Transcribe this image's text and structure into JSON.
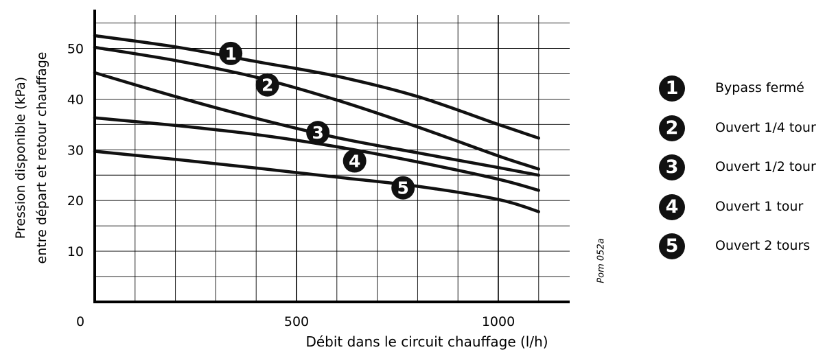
{
  "chart_data": {
    "type": "line",
    "xlabel": "Débit dans le circuit chauffage (l/h)",
    "ylabel_lines": [
      "Pression disponible (kPa)",
      "entre départ et retour chauffage"
    ],
    "xlim": [
      0,
      1200
    ],
    "ylim": [
      0,
      58
    ],
    "x_ticks": [
      {
        "value": 0,
        "label": "0"
      },
      {
        "value": 500,
        "label": "500"
      },
      {
        "value": 1000,
        "label": "1000"
      }
    ],
    "y_ticks": [
      {
        "value": 10,
        "label": "10"
      },
      {
        "value": 20,
        "label": "20"
      },
      {
        "value": 30,
        "label": "30"
      },
      {
        "value": 40,
        "label": "40"
      },
      {
        "value": 50,
        "label": "50"
      }
    ],
    "grid": true,
    "series": [
      {
        "marker": "1",
        "name": "Bypass fermé",
        "x": [
          0,
          200,
          400,
          600,
          800,
          1000,
          1100
        ],
        "y": [
          52.5,
          50.3,
          47.4,
          44.5,
          40.5,
          35.0,
          32.3
        ],
        "marker_at": [
          337,
          49.0
        ]
      },
      {
        "marker": "2",
        "name": "Ouvert 1/4 tour",
        "x": [
          0,
          200,
          400,
          600,
          800,
          1000,
          1100
        ],
        "y": [
          50.2,
          47.6,
          44.3,
          39.8,
          34.5,
          28.8,
          26.2
        ],
        "marker_at": [
          428,
          42.8
        ]
      },
      {
        "marker": "3",
        "name": "Ouvert 1/2 tour",
        "x": [
          0,
          200,
          400,
          600,
          800,
          1000,
          1100
        ],
        "y": [
          45.2,
          40.5,
          36.2,
          32.4,
          29.4,
          26.5,
          25.0
        ],
        "marker_at": [
          553,
          33.4
        ]
      },
      {
        "marker": "4",
        "name": "Ouvert 1 tour",
        "x": [
          0,
          200,
          400,
          600,
          800,
          1000,
          1100
        ],
        "y": [
          36.3,
          34.8,
          33.0,
          30.6,
          27.6,
          24.2,
          22.0
        ],
        "marker_at": [
          644,
          27.8
        ]
      },
      {
        "marker": "5",
        "name": "Ouvert 2 tours",
        "x": [
          0,
          200,
          400,
          600,
          800,
          1000,
          1100
        ],
        "y": [
          29.7,
          28.1,
          26.4,
          24.6,
          22.8,
          20.2,
          17.8
        ],
        "marker_at": [
          764,
          22.5
        ]
      }
    ],
    "legend_position": "right"
  },
  "ref_code": "Pom 052a",
  "colors": {
    "line": "#111111",
    "grid": "#000000"
  }
}
